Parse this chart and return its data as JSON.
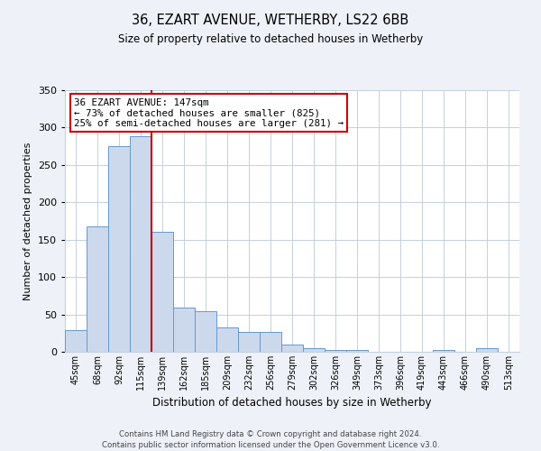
{
  "title": "36, EZART AVENUE, WETHERBY, LS22 6BB",
  "subtitle": "Size of property relative to detached houses in Wetherby",
  "xlabel": "Distribution of detached houses by size in Wetherby",
  "ylabel": "Number of detached properties",
  "bin_labels": [
    "45sqm",
    "68sqm",
    "92sqm",
    "115sqm",
    "139sqm",
    "162sqm",
    "185sqm",
    "209sqm",
    "232sqm",
    "256sqm",
    "279sqm",
    "302sqm",
    "326sqm",
    "349sqm",
    "373sqm",
    "396sqm",
    "419sqm",
    "443sqm",
    "466sqm",
    "490sqm",
    "513sqm"
  ],
  "bar_heights": [
    29,
    168,
    275,
    288,
    161,
    59,
    54,
    33,
    27,
    27,
    10,
    5,
    3,
    3,
    0,
    0,
    0,
    2,
    0,
    5,
    0
  ],
  "bar_color": "#ccd9ed",
  "bar_edge_color": "#6699cc",
  "vline_x_index": 3,
  "vline_color": "#c00000",
  "annotation_title": "36 EZART AVENUE: 147sqm",
  "annotation_line1": "← 73% of detached houses are smaller (825)",
  "annotation_line2": "25% of semi-detached houses are larger (281) →",
  "annotation_box_color": "#cc0000",
  "ylim": [
    0,
    350
  ],
  "yticks": [
    0,
    50,
    100,
    150,
    200,
    250,
    300,
    350
  ],
  "footer1": "Contains HM Land Registry data © Crown copyright and database right 2024.",
  "footer2": "Contains public sector information licensed under the Open Government Licence v3.0.",
  "bg_color": "#eef2f8",
  "plot_bg_color": "#ffffff",
  "grid_color": "#c5cfde"
}
